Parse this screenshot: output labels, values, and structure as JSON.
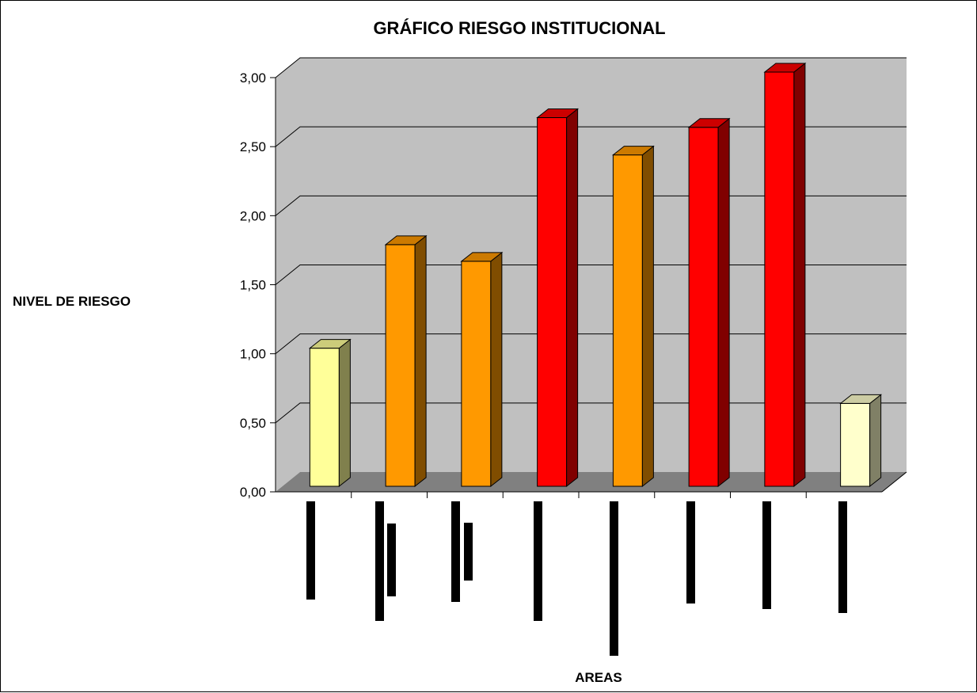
{
  "chart_data": {
    "type": "bar",
    "title": "GRÁFICO RIESGO INSTITUCIONAL",
    "xlabel": "AREAS",
    "ylabel": "NIVEL DE RIESGO",
    "ylim": [
      0,
      3
    ],
    "y_ticks": [
      "0,00",
      "0,50",
      "1,00",
      "1,50",
      "2,00",
      "2,50",
      "3,00"
    ],
    "grid": true,
    "legend": "none",
    "categories": [
      "",
      "",
      "",
      "",
      "",
      "",
      "",
      ""
    ],
    "values": [
      1.0,
      1.75,
      1.63,
      2.67,
      2.4,
      2.6,
      3.0,
      0.6
    ],
    "bar_colors": [
      "#FFFF99",
      "#FF9900",
      "#FF9900",
      "#FF0000",
      "#FF9900",
      "#FF0000",
      "#FF0000",
      "#FFFFCC"
    ],
    "colors": {
      "wall": "#C0C0C0",
      "floor": "#808080",
      "gridline": "#000000"
    }
  }
}
